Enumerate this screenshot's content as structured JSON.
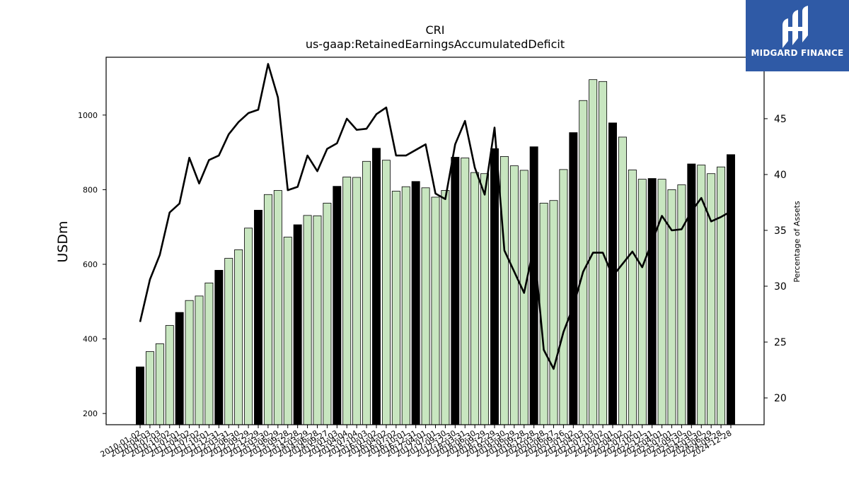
{
  "header": {
    "title": "CRI",
    "subtitle": "us-gaap:RetainedEarningsAccumulatedDeficit"
  },
  "logo": {
    "text": "MIDGARD FINANCE",
    "color": "#2f5aa6"
  },
  "chart_data": {
    "type": "bar",
    "title": "CRI",
    "subtitle": "us-gaap:RetainedEarningsAccumulatedDeficit",
    "ylabel": "USDm",
    "y2label": "Percentage of Assets",
    "ylim": [
      170,
      1155
    ],
    "y2lim": [
      17.6,
      50.5
    ],
    "yticks": [
      200,
      400,
      600,
      800,
      1000
    ],
    "y2ticks": [
      20,
      25,
      30,
      35,
      40,
      45
    ],
    "grid": false,
    "colors": {
      "annual_bar": "#000000",
      "quarter_bar": "#c8e6c0",
      "bar_edge": "#000000",
      "line": "#000000"
    },
    "categories": [
      "2010-01-02",
      "2010-04-03",
      "2010-07-03",
      "2010-10-02",
      "2011-01-01",
      "2011-04-02",
      "2011-07-02",
      "2011-10-01",
      "2011-12-31",
      "2012-03-31",
      "2012-06-30",
      "2012-09-29",
      "2012-12-29",
      "2013-03-30",
      "2013-06-29",
      "2013-09-28",
      "2013-12-28",
      "2014-03-29",
      "2014-06-28",
      "2014-09-27",
      "2015-01-03",
      "2015-04-04",
      "2015-07-04",
      "2015-10-03",
      "2016-01-02",
      "2016-04-02",
      "2016-07-02",
      "2016-10-01",
      "2016-12-31",
      "2017-04-01",
      "2017-07-01",
      "2017-09-30",
      "2017-12-30",
      "2018-03-31",
      "2018-06-30",
      "2018-09-29",
      "2018-12-29",
      "2019-03-30",
      "2019-06-29",
      "2019-09-28",
      "2019-12-28",
      "2020-03-28",
      "2020-06-27",
      "2020-09-26",
      "2021-01-02",
      "2021-04-03",
      "2021-07-03",
      "2021-10-02",
      "2022-01-01",
      "2022-04-02",
      "2022-07-02",
      "2022-10-01",
      "2022-12-31",
      "2023-04-01",
      "2023-07-01",
      "2023-09-30",
      "2023-12-30",
      "2024-03-30",
      "2024-06-29",
      "2024-09-28",
      "2024-12-28"
    ],
    "annual_flags": [
      1,
      0,
      0,
      0,
      1,
      0,
      0,
      0,
      1,
      0,
      0,
      0,
      1,
      0,
      0,
      0,
      1,
      0,
      0,
      0,
      1,
      0,
      0,
      0,
      1,
      0,
      0,
      0,
      1,
      0,
      0,
      0,
      1,
      0,
      0,
      0,
      1,
      0,
      0,
      0,
      1,
      0,
      0,
      0,
      1,
      0,
      0,
      0,
      1,
      0,
      0,
      0,
      1,
      0,
      0,
      0,
      1,
      0,
      0,
      0,
      1
    ],
    "series": [
      {
        "name": "USDm",
        "kind": "bar",
        "values": [
          325,
          366,
          387,
          436,
          471,
          503,
          515,
          550,
          584,
          616,
          639,
          697,
          745,
          787,
          798,
          673,
          706,
          731,
          730,
          764,
          809,
          834,
          833,
          876,
          911,
          879,
          796,
          808,
          822,
          805,
          780,
          798,
          887,
          885,
          846,
          843,
          910,
          889,
          864,
          852,
          915,
          764,
          771,
          854,
          953,
          1039,
          1095,
          1090,
          979,
          941,
          853,
          828,
          830,
          828,
          800,
          813,
          869,
          866,
          843,
          861,
          894
        ]
      },
      {
        "name": "Percentage of Assets",
        "kind": "line",
        "axis": "right",
        "values": [
          26.8,
          30.6,
          32.8,
          36.6,
          37.4,
          41.5,
          39.2,
          41.3,
          41.7,
          43.6,
          44.7,
          45.5,
          45.8,
          49.9,
          46.9,
          38.6,
          38.9,
          41.7,
          40.3,
          42.3,
          42.8,
          45.0,
          44.0,
          44.1,
          45.4,
          46.0,
          41.7,
          41.7,
          42.2,
          42.7,
          38.3,
          37.8,
          42.7,
          44.8,
          40.6,
          38.2,
          44.2,
          33.2,
          31.3,
          29.4,
          33.6,
          24.3,
          22.6,
          25.9,
          28.2,
          31.3,
          33.0,
          33.0,
          30.9,
          32.0,
          33.1,
          31.7,
          34.0,
          36.3,
          35.0,
          35.1,
          36.7,
          37.9,
          35.8,
          36.2,
          36.7
        ]
      }
    ]
  }
}
